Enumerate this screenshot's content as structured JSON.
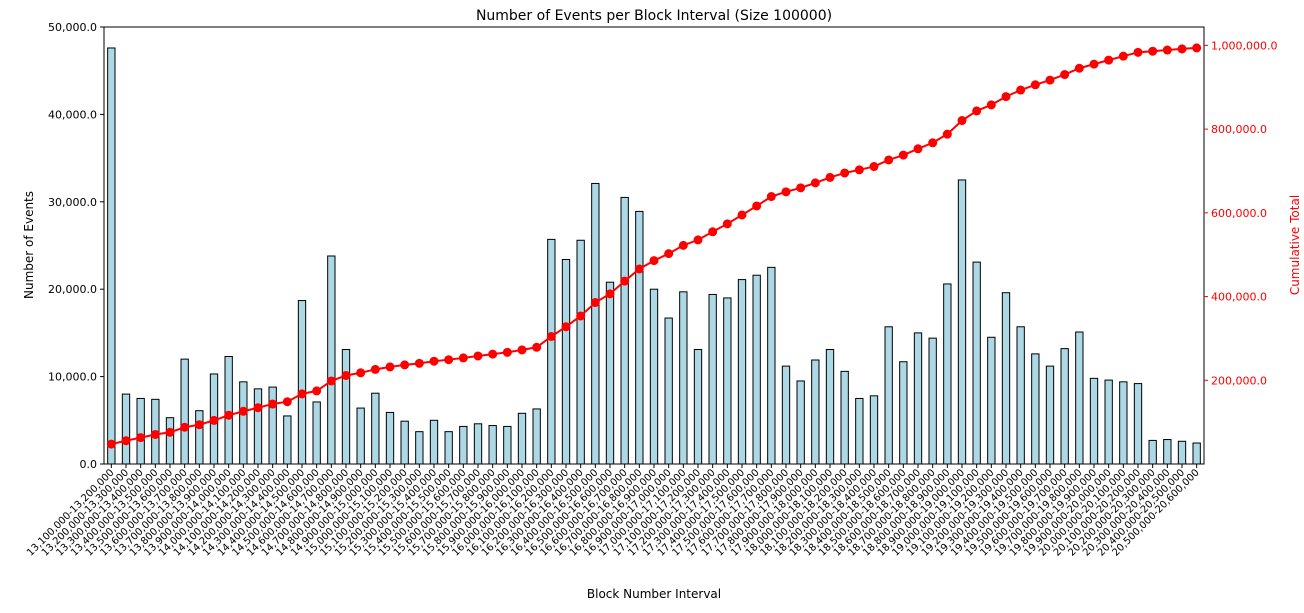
{
  "chart_data": {
    "type": "bar",
    "title": "Number of Events per Block Interval (Size 100000)",
    "xlabel": "Block Number Interval",
    "ylabel": "Number of Events",
    "y2label": "Cumulative Total",
    "ylim": [
      0,
      50000
    ],
    "y2lim": [
      0,
      1044000
    ],
    "yticks": [
      "0.0",
      "10,000.0",
      "20,000.0",
      "30,000.0",
      "40,000.0",
      "50,000.0"
    ],
    "ytick_values": [
      0,
      10000,
      20000,
      30000,
      40000,
      50000
    ],
    "y2ticks": [
      "200,000.0",
      "400,000.0",
      "600,000.0",
      "800,000.0",
      "1,000,000.0"
    ],
    "y2tick_values": [
      200000,
      400000,
      600000,
      800000,
      1000000
    ],
    "grid": false,
    "colors": {
      "bar": "#add8e6",
      "bar_edge": "#000000",
      "line": "#ff0000"
    },
    "categories": [
      "13,100,000-13,200,000",
      "13,200,000-13,300,000",
      "13,300,000-13,400,000",
      "13,400,000-13,500,000",
      "13,500,000-13,600,000",
      "13,600,000-13,700,000",
      "13,700,000-13,800,000",
      "13,800,000-13,900,000",
      "13,900,000-14,000,000",
      "14,000,000-14,100,000",
      "14,100,000-14,200,000",
      "14,200,000-14,300,000",
      "14,300,000-14,400,000",
      "14,400,000-14,500,000",
      "14,500,000-14,600,000",
      "14,600,000-14,700,000",
      "14,700,000-14,800,000",
      "14,800,000-14,900,000",
      "14,900,000-15,000,000",
      "15,000,000-15,100,000",
      "15,100,000-15,200,000",
      "15,200,000-15,300,000",
      "15,300,000-15,400,000",
      "15,400,000-15,500,000",
      "15,500,000-15,600,000",
      "15,600,000-15,700,000",
      "15,700,000-15,800,000",
      "15,800,000-15,900,000",
      "15,900,000-16,000,000",
      "16,000,000-16,100,000",
      "16,100,000-16,200,000",
      "16,200,000-16,300,000",
      "16,300,000-16,400,000",
      "16,400,000-16,500,000",
      "16,500,000-16,600,000",
      "16,600,000-16,700,000",
      "16,700,000-16,800,000",
      "16,800,000-16,900,000",
      "16,900,000-17,000,000",
      "17,000,000-17,100,000",
      "17,100,000-17,200,000",
      "17,200,000-17,300,000",
      "17,300,000-17,400,000",
      "17,400,000-17,500,000",
      "17,500,000-17,600,000",
      "17,600,000-17,700,000",
      "17,700,000-17,800,000",
      "17,800,000-17,900,000",
      "17,900,000-18,000,000",
      "18,000,000-18,100,000",
      "18,100,000-18,200,000",
      "18,200,000-18,300,000",
      "18,300,000-18,400,000",
      "18,400,000-18,500,000",
      "18,500,000-18,600,000",
      "18,600,000-18,700,000",
      "18,700,000-18,800,000",
      "18,800,000-18,900,000",
      "18,900,000-19,000,000",
      "19,000,000-19,100,000",
      "19,100,000-19,200,000",
      "19,200,000-19,300,000",
      "19,300,000-19,400,000",
      "19,400,000-19,500,000",
      "19,500,000-19,600,000",
      "19,600,000-19,700,000",
      "19,700,000-19,800,000",
      "19,800,000-19,900,000",
      "19,900,000-20,000,000",
      "20,000,000-20,100,000",
      "20,100,000-20,200,000",
      "20,200,000-20,300,000",
      "20,300,000-20,400,000",
      "20,400,000-20,500,000",
      "20,500,000-20,600,000"
    ],
    "series": [
      {
        "type": "bar",
        "axis": "left",
        "values": [
          47600,
          8000,
          7500,
          7400,
          5300,
          12000,
          6100,
          10300,
          12300,
          9400,
          8600,
          8800,
          5500,
          18700,
          7100,
          23800,
          13100,
          6400,
          8100,
          5900,
          4900,
          3700,
          5000,
          3700,
          4300,
          4600,
          4400,
          4300,
          5800,
          6300,
          25700,
          23400,
          25600,
          32100,
          20800,
          30500,
          28900,
          20000,
          16700,
          19700,
          13100,
          19400,
          19000,
          21100,
          21600,
          22500,
          11200,
          9500,
          11900,
          13100,
          10600,
          7500,
          7800,
          15700,
          11700,
          15000,
          14400,
          20600,
          32500,
          23100,
          14500,
          19600,
          15700,
          12600,
          11200,
          13200,
          15100,
          9800,
          9600,
          9400,
          9200,
          2700,
          2800,
          2600,
          2400
        ]
      },
      {
        "type": "line",
        "axis": "right",
        "marker": "circle",
        "values": [
          47600,
          55600,
          63100,
          70500,
          75800,
          87800,
          93900,
          104200,
          116500,
          125900,
          134500,
          143300,
          148800,
          167500,
          174600,
          198400,
          211500,
          217900,
          226000,
          231900,
          236800,
          240500,
          245500,
          249200,
          253500,
          258100,
          262500,
          266800,
          272600,
          278900,
          304600,
          328000,
          353600,
          385700,
          406500,
          437000,
          465900,
          485900,
          502600,
          522300,
          535400,
          554800,
          573800,
          594900,
          616500,
          639000,
          650200,
          659700,
          671600,
          684700,
          695300,
          702800,
          710600,
          726300,
          738000,
          753000,
          767400,
          788000,
          820500,
          843600,
          858100,
          877700,
          893400,
          906000,
          917200,
          930400,
          945500,
          955300,
          964900,
          974300,
          983500,
          986200,
          989000,
          991600,
          994000
        ]
      }
    ]
  }
}
